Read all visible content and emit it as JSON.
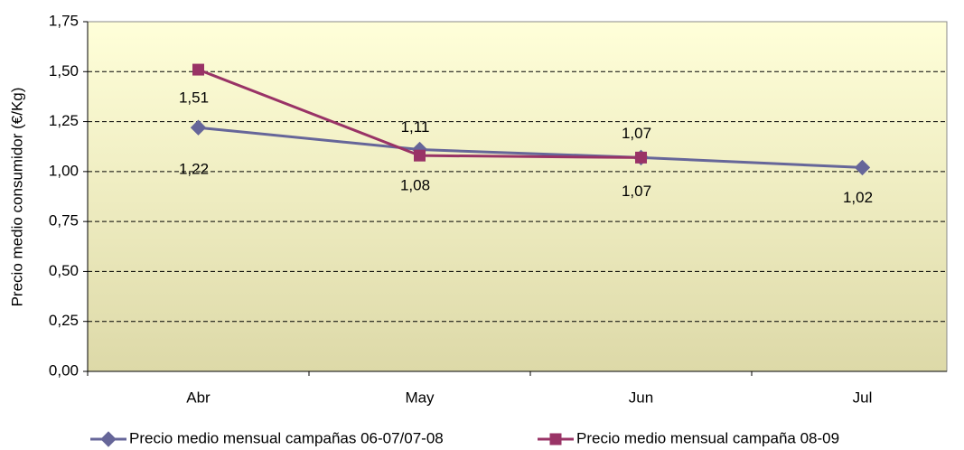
{
  "chart_data": {
    "type": "line",
    "y_axis_label": "Precio medio consumidor (€/Kg)",
    "categories": [
      "Abr",
      "May",
      "Jun",
      "Jul"
    ],
    "series": [
      {
        "name": "Precio medio mensual campañas 06-07/07-08",
        "color": "#666699",
        "marker": "diamond",
        "values": [
          1.22,
          1.11,
          1.07,
          1.02
        ],
        "value_labels": [
          "1,22",
          "1,11",
          "1,07",
          "1,02"
        ]
      },
      {
        "name": "Precio medio mensual campaña 08-09",
        "color": "#993366",
        "marker": "square",
        "values": [
          1.51,
          1.08,
          1.07,
          null
        ],
        "value_labels": [
          "1,51",
          "1,08",
          "1,07",
          null
        ]
      }
    ],
    "ylim": [
      0,
      1.75
    ],
    "yticks": [
      {
        "value": 0,
        "label": "0,00"
      },
      {
        "value": 0.25,
        "label": "0,25"
      },
      {
        "value": 0.5,
        "label": "0,50"
      },
      {
        "value": 0.75,
        "label": "0,75"
      },
      {
        "value": 1,
        "label": "1,00"
      },
      {
        "value": 1.25,
        "label": "1,25"
      },
      {
        "value": 1.5,
        "label": "1,50"
      },
      {
        "value": 1.75,
        "label": "1,75"
      }
    ],
    "grid": true
  }
}
